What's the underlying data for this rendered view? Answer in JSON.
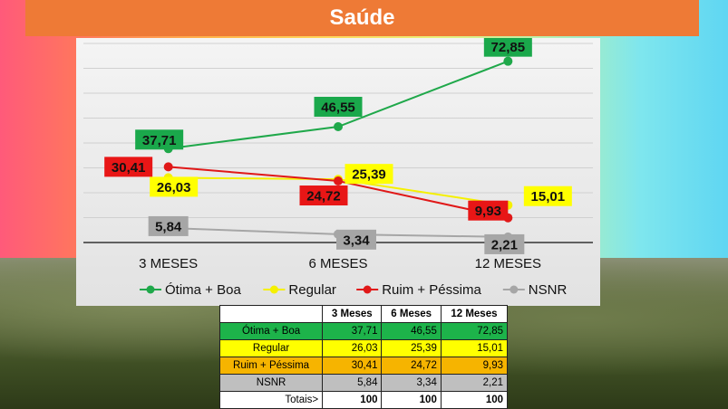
{
  "title": "Saúde",
  "chart_data": {
    "type": "line",
    "categories": [
      "3 MESES",
      "6 MESES",
      "12 MESES"
    ],
    "ylim": [
      0,
      80
    ],
    "grid": true,
    "legend_position": "bottom",
    "series": [
      {
        "name": "Ótima + Boa",
        "values": [
          37.71,
          46.55,
          72.85
        ],
        "labels": [
          "37,71",
          "46,55",
          "72,85"
        ],
        "color": "#1fa84a",
        "label_bg": "#1aa84b",
        "label_fg": "#111111"
      },
      {
        "name": "Regular",
        "values": [
          26.03,
          25.39,
          15.01
        ],
        "labels": [
          "26,03",
          "25,39",
          "15,01"
        ],
        "color": "#f5f000",
        "label_bg": "#ffff00",
        "label_fg": "#111111"
      },
      {
        "name": "Ruim + Péssima",
        "values": [
          30.41,
          24.72,
          9.93
        ],
        "labels": [
          "30,41",
          "24,72",
          "9,93"
        ],
        "color": "#e01818",
        "label_bg": "#e81616",
        "label_fg": "#111111"
      },
      {
        "name": "NSNR",
        "values": [
          5.84,
          3.34,
          2.21
        ],
        "labels": [
          "5,84",
          "3,34",
          "2,21"
        ],
        "color": "#a6a6a6",
        "label_bg": "#a6a6a6",
        "label_fg": "#111111"
      }
    ]
  },
  "table": {
    "headers": [
      "",
      "3 Meses",
      "6 Meses",
      "12 Meses"
    ],
    "rows": [
      {
        "label": "Ótima + Boa",
        "values": [
          "37,71",
          "46,55",
          "72,85"
        ],
        "bg": "#1db34a"
      },
      {
        "label": "Regular",
        "values": [
          "26,03",
          "25,39",
          "15,01"
        ],
        "bg": "#ffff00"
      },
      {
        "label": "Ruim + Péssima",
        "values": [
          "30,41",
          "24,72",
          "9,93"
        ],
        "bg": "#f6b400"
      },
      {
        "label": "NSNR",
        "values": [
          "5,84",
          "3,34",
          "2,21"
        ],
        "bg": "#bfbfbf"
      }
    ],
    "totals": {
      "label": "Totais>",
      "values": [
        "100",
        "100",
        "100"
      ]
    }
  }
}
